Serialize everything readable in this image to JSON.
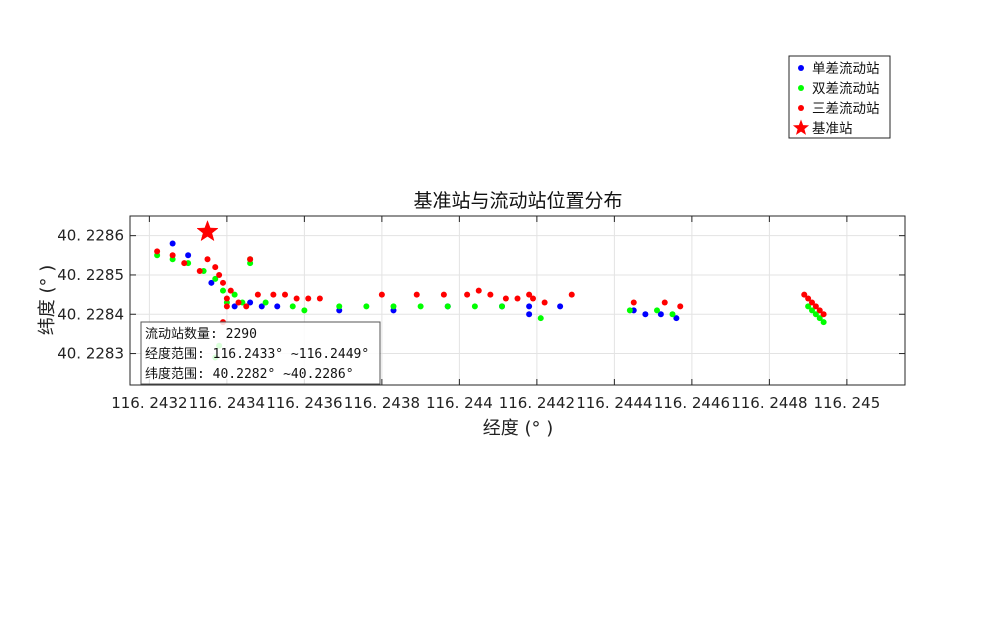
{
  "chart_data": {
    "type": "scatter",
    "title": "基准站与流动站位置分布",
    "xlabel": "经度 (° )",
    "ylabel": "纬度 (° )",
    "xlim": [
      116.24315,
      116.24515
    ],
    "ylim": [
      40.22822,
      40.22865
    ],
    "xticks": [
      116.2432,
      116.2434,
      116.2436,
      116.2438,
      116.244,
      116.2442,
      116.2444,
      116.2446,
      116.2448,
      116.245
    ],
    "xtick_labels": [
      "116. 2432",
      "116. 2434",
      "116. 2436",
      "116. 2438",
      "116. 244",
      "116. 2442",
      "116. 2444",
      "116. 2446",
      "116. 2448",
      "116. 245"
    ],
    "yticks": [
      40.2283,
      40.2284,
      40.2285,
      40.2286
    ],
    "ytick_labels": [
      "40. 2283",
      "40. 2284",
      "40. 2285",
      "40. 2286"
    ],
    "grid": true,
    "legend_position": "top-right",
    "series": [
      {
        "name": "单差流动站",
        "color": "#0000ff",
        "marker": "dot",
        "points": [
          [
            116.24326,
            40.22858
          ],
          [
            116.2433,
            40.22855
          ],
          [
            116.24336,
            40.22848
          ],
          [
            116.24342,
            40.22842
          ],
          [
            116.24346,
            40.22843
          ],
          [
            116.24349,
            40.22842
          ],
          [
            116.24353,
            40.22842
          ],
          [
            116.24369,
            40.22841
          ],
          [
            116.24383,
            40.22841
          ],
          [
            116.24397,
            40.22842
          ],
          [
            116.24411,
            40.22842
          ],
          [
            116.24418,
            40.22842
          ],
          [
            116.24426,
            40.22842
          ],
          [
            116.24418,
            40.2284
          ],
          [
            116.24445,
            40.22841
          ],
          [
            116.24448,
            40.2284
          ],
          [
            116.24452,
            40.2284
          ],
          [
            116.24456,
            40.22839
          ]
        ]
      },
      {
        "name": "双差流动站",
        "color": "#00ff00",
        "marker": "dot",
        "points": [
          [
            116.24322,
            40.22855
          ],
          [
            116.24326,
            40.22854
          ],
          [
            116.2433,
            40.22853
          ],
          [
            116.24334,
            40.22851
          ],
          [
            116.24337,
            40.22849
          ],
          [
            116.24339,
            40.22846
          ],
          [
            116.2434,
            40.22843
          ],
          [
            116.24342,
            40.22845
          ],
          [
            116.24346,
            40.22854
          ],
          [
            116.24346,
            40.22853
          ],
          [
            116.24344,
            40.22843
          ],
          [
            116.2435,
            40.22843
          ],
          [
            116.24357,
            40.22842
          ],
          [
            116.2436,
            40.22841
          ],
          [
            116.24369,
            40.22842
          ],
          [
            116.24376,
            40.22842
          ],
          [
            116.24383,
            40.22842
          ],
          [
            116.2439,
            40.22842
          ],
          [
            116.24397,
            40.22842
          ],
          [
            116.24404,
            40.22842
          ],
          [
            116.24411,
            40.22842
          ],
          [
            116.24421,
            40.22839
          ],
          [
            116.24444,
            40.22841
          ],
          [
            116.24451,
            40.22841
          ],
          [
            116.24455,
            40.2284
          ],
          [
            116.2449,
            40.22842
          ],
          [
            116.24491,
            40.22841
          ],
          [
            116.24492,
            40.2284
          ],
          [
            116.24493,
            40.22839
          ],
          [
            116.24494,
            40.22838
          ],
          [
            116.24338,
            40.22832
          ],
          [
            116.24337,
            40.22829
          ]
        ]
      },
      {
        "name": "三差流动站",
        "color": "#ff0000",
        "marker": "dot",
        "points": [
          [
            116.24322,
            40.22856
          ],
          [
            116.24326,
            40.22855
          ],
          [
            116.24329,
            40.22853
          ],
          [
            116.24333,
            40.22851
          ],
          [
            116.24335,
            40.22854
          ],
          [
            116.24337,
            40.22852
          ],
          [
            116.24338,
            40.2285
          ],
          [
            116.24339,
            40.22848
          ],
          [
            116.2434,
            40.22844
          ],
          [
            116.24341,
            40.22846
          ],
          [
            116.24343,
            40.22843
          ],
          [
            116.24345,
            40.22842
          ],
          [
            116.24346,
            40.22854
          ],
          [
            116.24348,
            40.22845
          ],
          [
            116.24352,
            40.22845
          ],
          [
            116.24355,
            40.22845
          ],
          [
            116.24358,
            40.22844
          ],
          [
            116.24361,
            40.22844
          ],
          [
            116.24364,
            40.22844
          ],
          [
            116.2438,
            40.22845
          ],
          [
            116.24389,
            40.22845
          ],
          [
            116.24396,
            40.22845
          ],
          [
            116.24402,
            40.22845
          ],
          [
            116.24408,
            40.22845
          ],
          [
            116.24412,
            40.22844
          ],
          [
            116.24415,
            40.22844
          ],
          [
            116.24419,
            40.22844
          ],
          [
            116.24422,
            40.22843
          ],
          [
            116.24429,
            40.22845
          ],
          [
            116.24445,
            40.22843
          ],
          [
            116.24453,
            40.22843
          ],
          [
            116.24457,
            40.22842
          ],
          [
            116.24489,
            40.22845
          ],
          [
            116.2449,
            40.22844
          ],
          [
            116.24491,
            40.22843
          ],
          [
            116.24492,
            40.22842
          ],
          [
            116.24493,
            40.22841
          ],
          [
            116.24494,
            40.2284
          ],
          [
            116.24339,
            40.22838
          ],
          [
            116.2434,
            40.22842
          ],
          [
            116.24418,
            40.22845
          ],
          [
            116.24405,
            40.22846
          ]
        ]
      },
      {
        "name": "基准站",
        "color": "#ff0000",
        "marker": "star",
        "points": [
          [
            116.24335,
            40.22861
          ]
        ]
      }
    ],
    "annotation": {
      "lines": [
        "流动站数量: 2290",
        "经度范围: 116.2433° ~116.2449°",
        "纬度范围: 40.2282° ~40.2286°"
      ]
    }
  }
}
